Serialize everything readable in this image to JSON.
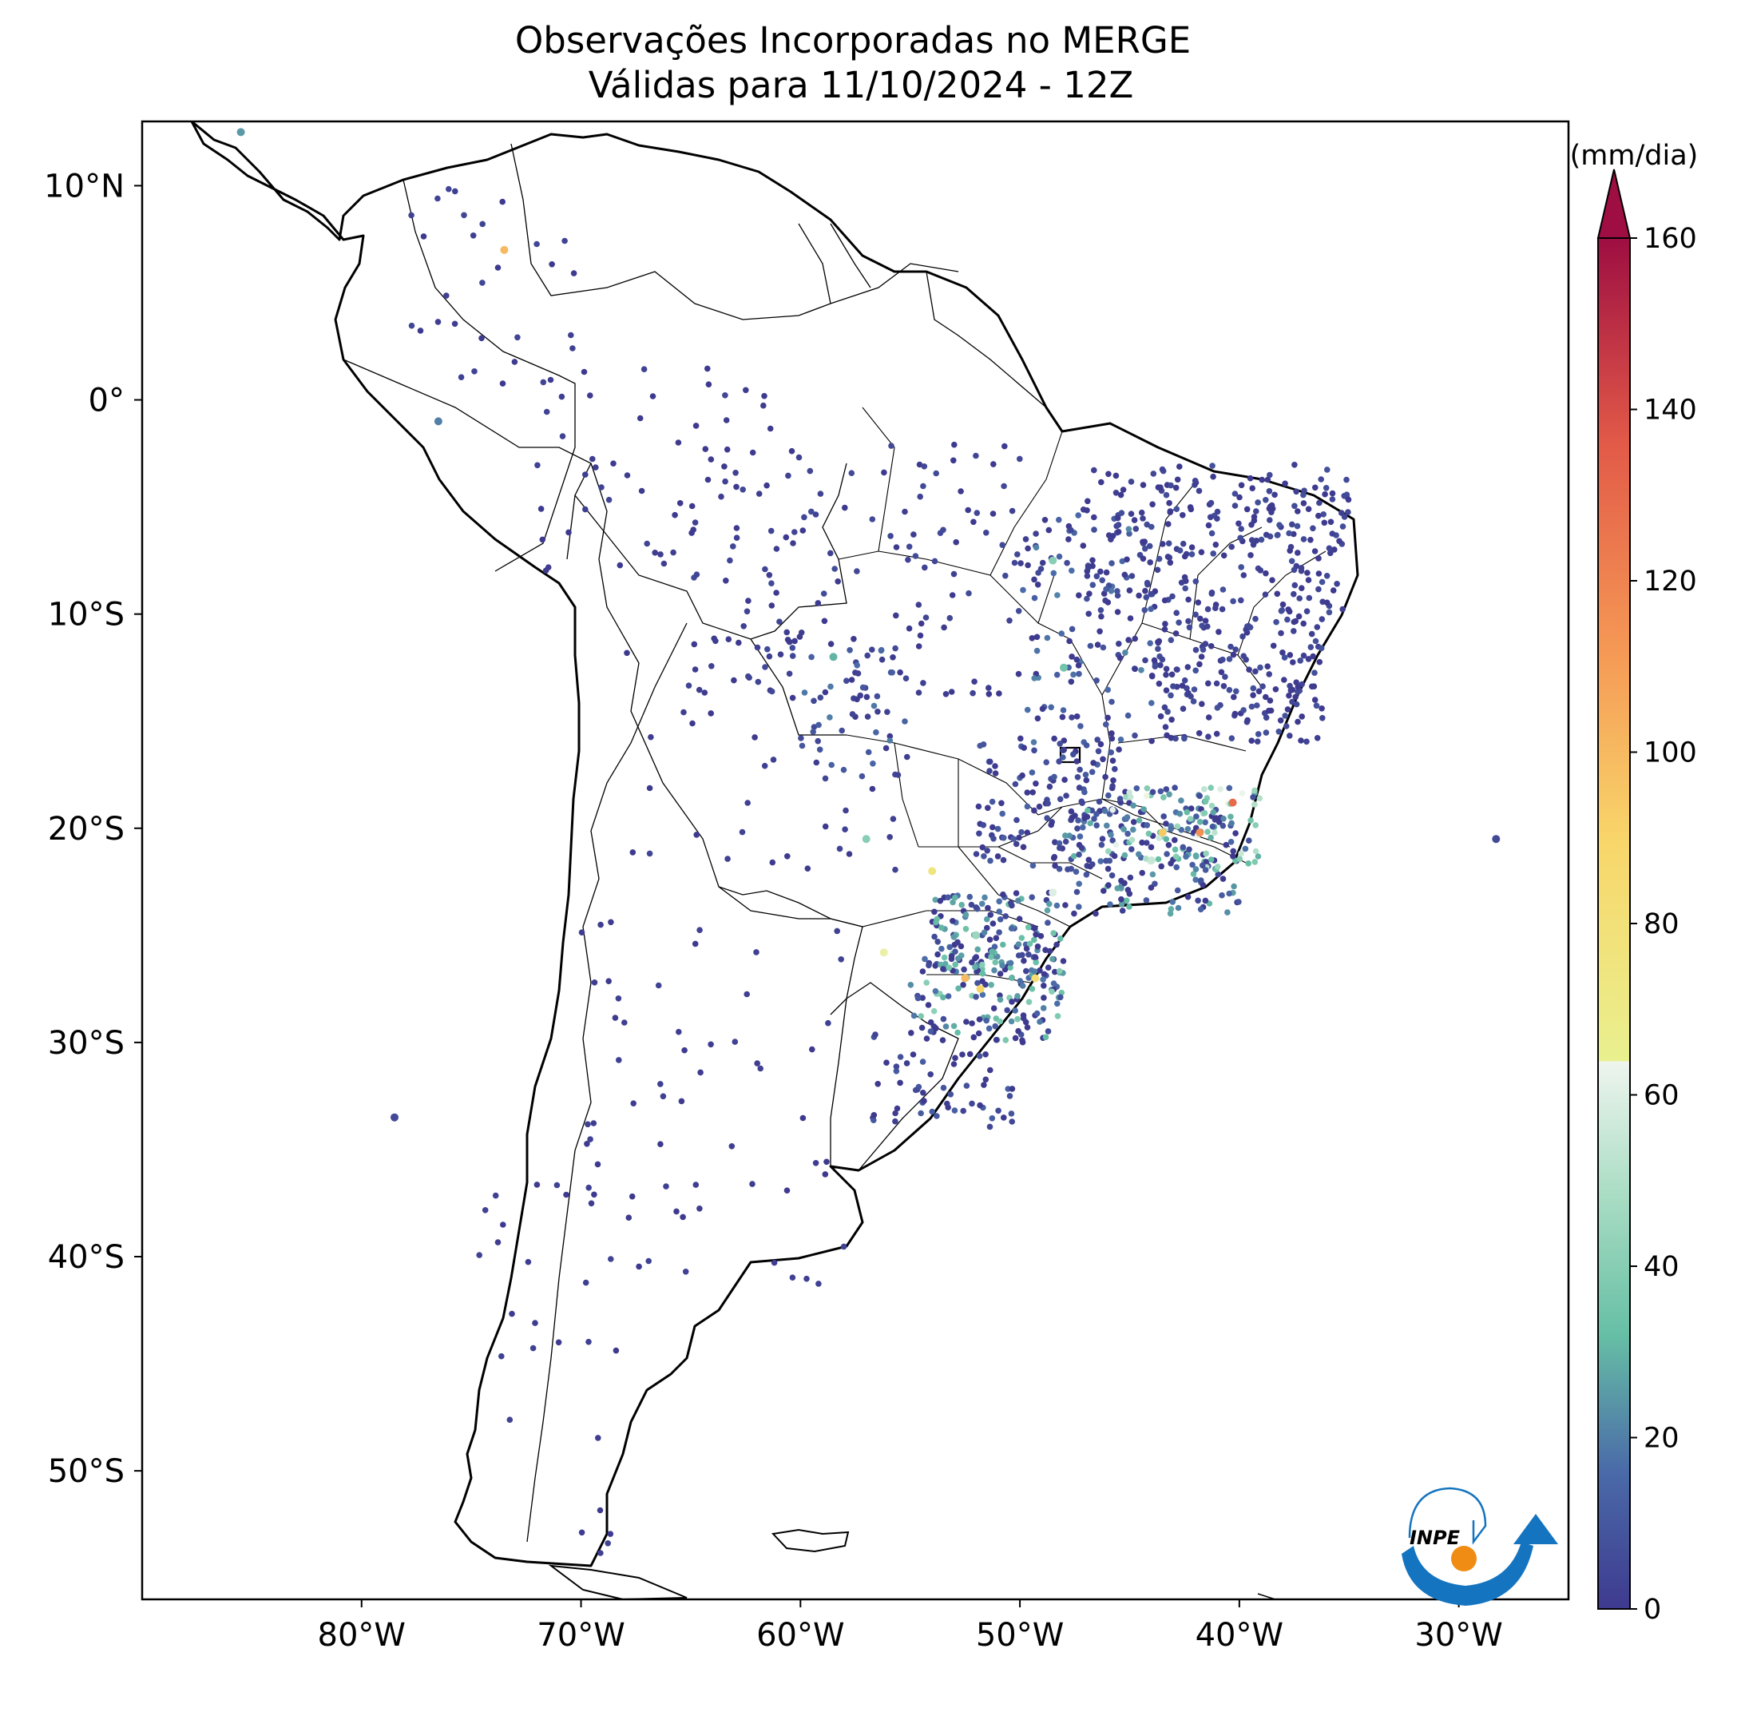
{
  "title": {
    "line1": "Observações Incorporadas no MERGE",
    "line2": "Válidas para 11/10/2024 - 12Z"
  },
  "map": {
    "lon_range": [
      -90,
      -25
    ],
    "lat_range": [
      -56,
      13
    ],
    "lat_ticks": [
      {
        "value": 10,
        "label": "10°N"
      },
      {
        "value": 0,
        "label": "0°"
      },
      {
        "value": -10,
        "label": "10°S"
      },
      {
        "value": -20,
        "label": "20°S"
      },
      {
        "value": -30,
        "label": "30°S"
      },
      {
        "value": -40,
        "label": "40°S"
      },
      {
        "value": -50,
        "label": "50°S"
      }
    ],
    "lon_ticks": [
      {
        "value": -80,
        "label": "80°W"
      },
      {
        "value": -70,
        "label": "70°W"
      },
      {
        "value": -60,
        "label": "60°W"
      },
      {
        "value": -50,
        "label": "50°W"
      },
      {
        "value": -40,
        "label": "40°W"
      },
      {
        "value": -30,
        "label": "30°W"
      }
    ]
  },
  "colorbar": {
    "unit": "(mm/dia)",
    "min": 0,
    "max": 160,
    "extend": "max",
    "ticks": [
      "0",
      "20",
      "40",
      "60",
      "80",
      "100",
      "120",
      "140",
      "160"
    ],
    "tick_values": [
      0,
      20,
      40,
      60,
      80,
      100,
      120,
      140,
      160
    ],
    "colormap": "Spectral_r (dark blue → teal → white → yellow → orange → red)",
    "stops": [
      {
        "v": 0,
        "color": "#3e3a8f"
      },
      {
        "v": 16,
        "color": "#4a6aa8"
      },
      {
        "v": 32,
        "color": "#66bfa5"
      },
      {
        "v": 48,
        "color": "#a8dcc3"
      },
      {
        "v": 64,
        "color": "#eef5ee"
      },
      {
        "v": 72,
        "color": "#e9f08f"
      },
      {
        "v": 90,
        "color": "#f8d66a"
      },
      {
        "v": 112,
        "color": "#f59855"
      },
      {
        "v": 136,
        "color": "#e25a48"
      },
      {
        "v": 160,
        "color": "#9e0e42"
      }
    ]
  },
  "logo": {
    "text": "INPE"
  },
  "colors": {
    "station_low": "#3e3a8f",
    "station_mid": "#5aa8a0",
    "station_high": "#f5a54f",
    "logo_blue": "#1574bf",
    "logo_orange": "#f08c14"
  },
  "chart_data": {
    "type": "scatter",
    "title": "Observações Incorporadas no MERGE\nVálidas para 11/10/2024 - 12Z",
    "xlabel": "",
    "ylabel": "",
    "xlim": [
      -90,
      -25
    ],
    "ylim": [
      -56,
      13
    ],
    "color_variable": "precipitação (mm/dia)",
    "representative_points": [
      {
        "lon": -73.5,
        "lat": 7.0,
        "mm": 100
      },
      {
        "lon": -43.5,
        "lat": -20.2,
        "mm": 95
      },
      {
        "lon": -41.8,
        "lat": -20.2,
        "mm": 115
      },
      {
        "lon": -40.3,
        "lat": -18.8,
        "mm": 130
      },
      {
        "lon": -52.5,
        "lat": -27.0,
        "mm": 100
      },
      {
        "lon": -51.8,
        "lat": -27.5,
        "mm": 90
      },
      {
        "lon": -49.3,
        "lat": -27.0,
        "mm": 85
      },
      {
        "lon": -54.0,
        "lat": -22.0,
        "mm": 80
      },
      {
        "lon": -48.5,
        "lat": -23.0,
        "mm": 60
      },
      {
        "lon": -44.0,
        "lat": -21.5,
        "mm": 55
      },
      {
        "lon": -52.0,
        "lat": -25.0,
        "mm": 45
      },
      {
        "lon": -56.2,
        "lat": -25.8,
        "mm": 70
      },
      {
        "lon": -48.5,
        "lat": -7.5,
        "mm": 40
      },
      {
        "lon": -48.0,
        "lat": -12.5,
        "mm": 35
      },
      {
        "lon": -58.5,
        "lat": -12.0,
        "mm": 30
      },
      {
        "lon": -57.0,
        "lat": -20.5,
        "mm": 40
      },
      {
        "lon": -28.3,
        "lat": -20.5,
        "mm": 5
      },
      {
        "lon": -78.5,
        "lat": -33.5,
        "mm": 5
      },
      {
        "lon": -76.5,
        "lat": -1.0,
        "mm": 20
      },
      {
        "lon": -85.5,
        "lat": 12.5,
        "mm": 25
      }
    ]
  }
}
